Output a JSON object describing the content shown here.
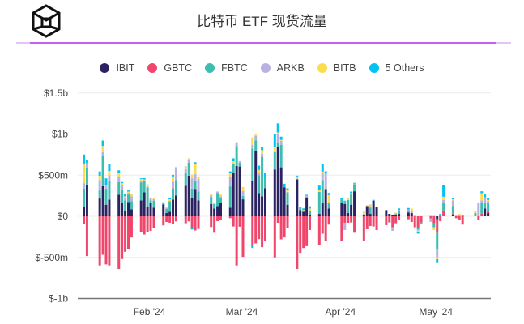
{
  "header": {
    "logo": "cube-logo",
    "title": "比特币 ETF 现货流量"
  },
  "colors": {
    "IBIT": "#2b2261",
    "GBTC": "#f0466c",
    "FBTC": "#3dbdb0",
    "ARKB": "#b8b2e2",
    "BITB": "#fcdc4d",
    "5 Others": "#00c3f2",
    "accent": "#c75ef0"
  },
  "chart_data": {
    "type": "bar",
    "stacked": true,
    "unit": "$m",
    "legend_position": "top",
    "grid": true,
    "ylim": [
      -1000,
      1500
    ],
    "y_ticks": [
      {
        "value": 1500,
        "label": "$1.5b"
      },
      {
        "value": 1000,
        "label": "$1b"
      },
      {
        "value": 500,
        "label": "$500m"
      },
      {
        "value": 0,
        "label": "$0"
      },
      {
        "value": -500,
        "label": "$-500m"
      },
      {
        "value": -1000,
        "label": "$-1b"
      }
    ],
    "x_ticks": [
      {
        "date": "2024-02-01",
        "label": "Feb '24"
      },
      {
        "date": "2024-03-01",
        "label": "Mar '24"
      },
      {
        "date": "2024-04-01",
        "label": "Apr '24"
      },
      {
        "date": "2024-05-01",
        "label": "May '24"
      }
    ],
    "series_names": [
      "IBIT",
      "GBTC",
      "FBTC",
      "ARKB",
      "BITB",
      "5 Others"
    ],
    "x": [
      "2024-01-11",
      "2024-01-12",
      "2024-01-16",
      "2024-01-17",
      "2024-01-18",
      "2024-01-19",
      "2024-01-22",
      "2024-01-23",
      "2024-01-24",
      "2024-01-25",
      "2024-01-26",
      "2024-01-29",
      "2024-01-30",
      "2024-01-31",
      "2024-02-01",
      "2024-02-02",
      "2024-02-05",
      "2024-02-06",
      "2024-02-07",
      "2024-02-08",
      "2024-02-09",
      "2024-02-12",
      "2024-02-13",
      "2024-02-14",
      "2024-02-15",
      "2024-02-16",
      "2024-02-20",
      "2024-02-21",
      "2024-02-22",
      "2024-02-23",
      "2024-02-26",
      "2024-02-27",
      "2024-02-28",
      "2024-02-29",
      "2024-03-01",
      "2024-03-04",
      "2024-03-05",
      "2024-03-06",
      "2024-03-07",
      "2024-03-08",
      "2024-03-11",
      "2024-03-12",
      "2024-03-13",
      "2024-03-14",
      "2024-03-15",
      "2024-03-18",
      "2024-03-19",
      "2024-03-20",
      "2024-03-21",
      "2024-03-22",
      "2024-03-25",
      "2024-03-26",
      "2024-03-27",
      "2024-03-28",
      "2024-04-01",
      "2024-04-02",
      "2024-04-03",
      "2024-04-04",
      "2024-04-05",
      "2024-04-08",
      "2024-04-09",
      "2024-04-10",
      "2024-04-11",
      "2024-04-12",
      "2024-04-15",
      "2024-04-16",
      "2024-04-17",
      "2024-04-18",
      "2024-04-19",
      "2024-04-22",
      "2024-04-23",
      "2024-04-24",
      "2024-04-25",
      "2024-04-26",
      "2024-04-29",
      "2024-04-30",
      "2024-05-01",
      "2024-05-02",
      "2024-05-03",
      "2024-05-06",
      "2024-05-07",
      "2024-05-08",
      "2024-05-09",
      "2024-05-10",
      "2024-05-13",
      "2024-05-14",
      "2024-05-15",
      "2024-05-16",
      "2024-05-17"
    ],
    "values": [
      [
        111,
        -95,
        227,
        65,
        238,
        110
      ],
      [
        386,
        -484,
        200,
        45,
        13,
        45
      ],
      [
        216,
        -598,
        98,
        124,
        55,
        52
      ],
      [
        366,
        -468,
        366,
        49,
        75,
        65
      ],
      [
        141,
        -585,
        193,
        39,
        10,
        78
      ],
      [
        203,
        -598,
        226,
        69,
        52,
        85
      ],
      [
        262,
        -641,
        154,
        65,
        42,
        36
      ],
      [
        164,
        -520,
        154,
        65,
        20,
        13
      ],
      [
        62,
        -432,
        131,
        33,
        16,
        33
      ],
      [
        173,
        -396,
        92,
        20,
        16,
        13
      ],
      [
        85,
        -258,
        98,
        59,
        23,
        10
      ],
      [
        193,
        -190,
        216,
        23,
        20,
        10
      ],
      [
        291,
        -222,
        137,
        10,
        10,
        16
      ],
      [
        118,
        -190,
        232,
        5,
        26,
        5
      ],
      [
        160,
        -177,
        33,
        26,
        0,
        5
      ],
      [
        105,
        -144,
        82,
        20,
        10,
        5
      ],
      [
        144,
        -111,
        26,
        0,
        0,
        0
      ],
      [
        39,
        -69,
        49,
        10,
        13,
        5
      ],
      [
        56,
        -78,
        128,
        0,
        23,
        20
      ],
      [
        203,
        -98,
        137,
        82,
        62,
        20
      ],
      [
        252,
        -62,
        186,
        147,
        16,
        0
      ],
      [
        370,
        -85,
        154,
        49,
        26,
        5
      ],
      [
        494,
        -62,
        157,
        42,
        13,
        0
      ],
      [
        229,
        -141,
        108,
        124,
        46,
        -20
      ],
      [
        330,
        -173,
        105,
        78,
        118,
        26
      ],
      [
        193,
        -154,
        108,
        150,
        20,
        10
      ],
      [
        150,
        -131,
        85,
        23,
        13,
        0
      ],
      [
        95,
        -200,
        56,
        5,
        0,
        0
      ],
      [
        124,
        -59,
        157,
        20,
        0,
        0
      ],
      [
        160,
        -43,
        56,
        26,
        23,
        0
      ],
      [
        105,
        -23,
        258,
        121,
        42,
        20
      ],
      [
        526,
        -124,
        114,
        0,
        29,
        36
      ],
      [
        612,
        -598,
        242,
        46,
        0,
        0
      ],
      [
        605,
        -127,
        46,
        10,
        5,
        5
      ],
      [
        206,
        -494,
        42,
        59,
        49,
        0
      ],
      [
        432,
        -363,
        392,
        46,
        88,
        -23
      ],
      [
        791,
        -330,
        131,
        56,
        16,
        0
      ],
      [
        281,
        -278,
        216,
        33,
        33,
        52
      ],
      [
        242,
        -376,
        481,
        36,
        46,
        42
      ],
      [
        340,
        -298,
        134,
        5,
        0,
        52
      ],
      [
        569,
        -500,
        212,
        0,
        65,
        157
      ],
      [
        850,
        -79,
        50,
        100,
        20,
        110
      ],
      [
        595,
        -281,
        275,
        49,
        10,
        39
      ],
      [
        350,
        -258,
        0,
        0,
        0,
        45
      ],
      [
        141,
        -147,
        150,
        0,
        26,
        23
      ],
      [
        448,
        -641,
        0,
        10,
        26,
        10
      ],
      [
        75,
        -445,
        42,
        0,
        0,
        0
      ],
      [
        56,
        -386,
        0,
        10,
        10,
        20
      ],
      [
        226,
        -363,
        10,
        16,
        0,
        10
      ],
      [
        13,
        -167,
        49,
        0,
        33,
        26
      ],
      [
        29,
        -350,
        268,
        0,
        20,
        56
      ],
      [
        160,
        -212,
        278,
        88,
        16,
        95
      ],
      [
        330,
        -298,
        0,
        196,
        5,
        16
      ],
      [
        95,
        -101,
        65,
        0,
        98,
        26
      ],
      [
        160,
        -302,
        39,
        0,
        0,
        20
      ],
      [
        150,
        -79,
        30,
        -88,
        0,
        10
      ],
      [
        39,
        -79,
        160,
        0,
        23,
        0
      ],
      [
        141,
        -75,
        124,
        20,
        0,
        15
      ],
      [
        304,
        -200,
        88,
        0,
        5,
        10
      ],
      [
        13,
        -298,
        10,
        5,
        30,
        0
      ],
      [
        124,
        -157,
        0,
        0,
        13,
        0
      ],
      [
        29,
        -118,
        78,
        0,
        29,
        5
      ],
      [
        190,
        -124,
        0,
        0,
        0,
        10
      ],
      [
        108,
        -167,
        0,
        0,
        0,
        0
      ],
      [
        75,
        -108,
        0,
        0,
        0,
        0
      ],
      [
        29,
        -75,
        0,
        0,
        0,
        0
      ],
      [
        20,
        -134,
        0,
        -43,
        0,
        0
      ],
      [
        10,
        -85,
        15,
        10,
        10,
        0
      ],
      [
        29,
        -43,
        37,
        10,
        0,
        20
      ],
      [
        46,
        -36,
        20,
        15,
        0,
        20
      ],
      [
        39,
        -69,
        0,
        29,
        26,
        0
      ],
      [
        0,
        -134,
        5,
        0,
        0,
        0
      ],
      [
        0,
        -141,
        -20,
        -15,
        -10,
        -25
      ],
      [
        0,
        -75,
        -13,
        0,
        0,
        0
      ],
      [
        0,
        -26,
        0,
        -42,
        10,
        0
      ],
      [
        0,
        -85,
        -49,
        5,
        -33,
        0
      ],
      [
        -37,
        -164,
        -196,
        -105,
        -20,
        -46
      ],
      [
        0,
        -59,
        5,
        0,
        0,
        23
      ],
      [
        0,
        72,
        98,
        29,
        39,
        144
      ],
      [
        23,
        5,
        98,
        65,
        16,
        10
      ],
      [
        0,
        -23,
        5,
        0,
        0,
        0
      ],
      [
        0,
        -46,
        5,
        0,
        23,
        0
      ],
      [
        0,
        -101,
        20,
        0,
        0,
        0
      ],
      [
        0,
        0,
        0,
        0,
        0,
        0
      ],
      [
        0,
        0,
        39,
        0,
        20,
        0
      ],
      [
        0,
        -46,
        0,
        147,
        0,
        7
      ],
      [
        0,
        30,
        137,
        26,
        88,
        23
      ],
      [
        95,
        0,
        65,
        72,
        0,
        33
      ],
      [
        39,
        29,
        98,
        20,
        13,
        20
      ]
    ]
  }
}
